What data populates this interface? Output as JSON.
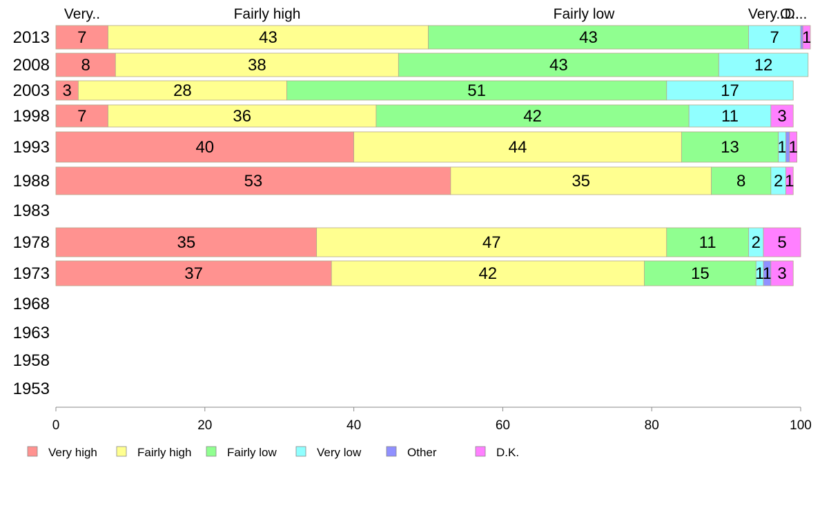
{
  "chart_data": {
    "type": "bar",
    "orientation": "horizontal",
    "stacked": true,
    "xlim": [
      0,
      100
    ],
    "x_ticks": [
      0,
      20,
      40,
      60,
      80,
      100
    ],
    "categories": [
      "2013",
      "2008",
      "2003",
      "1998",
      "1993",
      "1988",
      "1983",
      "1978",
      "1973",
      "1968",
      "1963",
      "1958",
      "1953"
    ],
    "header_labels": [
      "Very..",
      "Fairly high",
      "Fairly low",
      "Very..",
      "O..",
      "D..."
    ],
    "legend_position": "bottom",
    "series": [
      {
        "name": "Very high",
        "color": "#ff9290",
        "values": [
          7,
          8,
          3,
          7,
          40,
          53,
          null,
          35,
          37,
          null,
          null,
          null,
          null
        ]
      },
      {
        "name": "Fairly high",
        "color": "#ffff90",
        "values": [
          43,
          38,
          28,
          36,
          44,
          35,
          null,
          47,
          42,
          null,
          null,
          null,
          null
        ]
      },
      {
        "name": "Fairly low",
        "color": "#90ff90",
        "values": [
          43,
          43,
          51,
          42,
          13,
          8,
          null,
          11,
          15,
          null,
          null,
          null,
          null
        ]
      },
      {
        "name": "Very low",
        "color": "#90ffff",
        "values": [
          7,
          12,
          17,
          11,
          1,
          2,
          null,
          2,
          1,
          null,
          null,
          null,
          null
        ]
      },
      {
        "name": "Other",
        "color": "#9090ff",
        "values": [
          0.3,
          0,
          0,
          0,
          0.5,
          0,
          null,
          0,
          1,
          null,
          null,
          null,
          null
        ]
      },
      {
        "name": "D.K.",
        "color": "#ff80ff",
        "values": [
          1,
          0,
          0,
          3,
          1,
          1,
          null,
          5,
          3,
          null,
          null,
          null,
          null
        ]
      }
    ],
    "data_labels": [
      [
        "7",
        "43",
        "43",
        "7",
        "",
        "1"
      ],
      [
        "8",
        "38",
        "43",
        "12",
        "",
        ""
      ],
      [
        "3",
        "28",
        "51",
        "17",
        "",
        ""
      ],
      [
        "7",
        "36",
        "42",
        "11",
        "",
        "3"
      ],
      [
        "40",
        "44",
        "13",
        "1",
        "",
        "1"
      ],
      [
        "53",
        "35",
        "8",
        "2",
        "",
        "1"
      ],
      [],
      [
        "35",
        "47",
        "11",
        "2",
        "",
        "5"
      ],
      [
        "37",
        "42",
        "15",
        "1",
        "1",
        "3"
      ],
      [],
      [],
      [],
      []
    ]
  }
}
